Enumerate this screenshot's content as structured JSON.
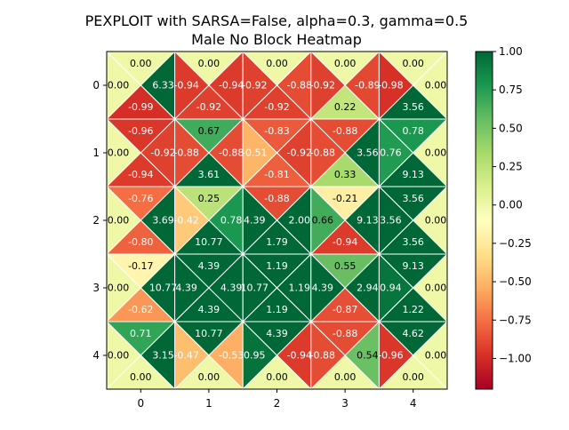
{
  "chart_data": {
    "type": "heatmap",
    "title_lines": [
      "PEXPLOIT with SARSA=False, alpha=0.3, gamma=0.5",
      "Male No Block Heatmap"
    ],
    "xlabel": "",
    "ylabel": "",
    "x_ticks": [
      "0",
      "1",
      "2",
      "3",
      "4"
    ],
    "y_ticks": [
      "0",
      "1",
      "2",
      "3",
      "4"
    ],
    "colorbar": {
      "vmin": -1.2,
      "vmax": 1.0,
      "ticks": [
        "1.00",
        "0.75",
        "0.50",
        "0.25",
        "0.00",
        "−0.25",
        "−0.50",
        "−0.75",
        "−1.00"
      ],
      "tick_values": [
        1.0,
        0.75,
        0.5,
        0.25,
        0.0,
        -0.25,
        -0.5,
        -0.75,
        -1.0
      ],
      "colormap": "RdYlGn"
    },
    "cell_parts": [
      "top",
      "left",
      "right",
      "bottom"
    ],
    "cells": [
      [
        {
          "top": "0.00",
          "left": "0.00",
          "right": "6.33",
          "bottom": "-0.99"
        },
        {
          "top": "0.00",
          "left": "-0.94",
          "right": "-0.94",
          "bottom": "-0.92"
        },
        {
          "top": "0.00",
          "left": "-0.92",
          "right": "-0.88",
          "bottom": "-0.92"
        },
        {
          "top": "0.00",
          "left": "-0.92",
          "right": "-0.89",
          "bottom": "0.22"
        },
        {
          "top": "0.00",
          "left": "-0.98",
          "right": "0.00",
          "bottom": "3.56"
        }
      ],
      [
        {
          "top": "-0.96",
          "left": "0.00",
          "right": "-0.92",
          "bottom": "-0.94"
        },
        {
          "top": "0.67",
          "left": "-0.88",
          "right": "-0.88",
          "bottom": "3.61"
        },
        {
          "top": "-0.83",
          "left": "-0.51",
          "right": "-0.92",
          "bottom": "-0.81"
        },
        {
          "top": "-0.88",
          "left": "-0.88",
          "right": "3.56",
          "bottom": "0.33"
        },
        {
          "top": "0.78",
          "left": "0.76",
          "right": "0.00",
          "bottom": "9.13"
        }
      ],
      [
        {
          "top": "-0.76",
          "left": "0.00",
          "right": "3.69",
          "bottom": "-0.80"
        },
        {
          "top": "0.25",
          "left": "-0.42",
          "right": "0.78",
          "bottom": "10.77"
        },
        {
          "top": "-0.88",
          "left": "4.39",
          "right": "2.00",
          "bottom": "1.79"
        },
        {
          "top": "-0.21",
          "left": "0.66",
          "right": "9.13",
          "bottom": "-0.94"
        },
        {
          "top": "3.56",
          "left": "3.56",
          "right": "0.00",
          "bottom": "3.56"
        }
      ],
      [
        {
          "top": "-0.17",
          "left": "0.00",
          "right": "10.77",
          "bottom": "-0.62"
        },
        {
          "top": "4.39",
          "left": "4.39",
          "right": "4.39",
          "bottom": "4.39"
        },
        {
          "top": "1.19",
          "left": "10.77",
          "right": "1.19",
          "bottom": "1.19"
        },
        {
          "top": "0.55",
          "left": "4.39",
          "right": "2.94",
          "bottom": "-0.87"
        },
        {
          "top": "9.13",
          "left": "0.94",
          "right": "0.00",
          "bottom": "1.22"
        }
      ],
      [
        {
          "top": "0.71",
          "left": "0.00",
          "right": "3.15",
          "bottom": "0.00"
        },
        {
          "top": "10.77",
          "left": "-0.47",
          "right": "-0.53",
          "bottom": "0.00"
        },
        {
          "top": "4.39",
          "left": "0.95",
          "right": "-0.94",
          "bottom": "0.00"
        },
        {
          "top": "-0.88",
          "left": "-0.88",
          "right": "0.54",
          "bottom": "0.00"
        },
        {
          "top": "4.62",
          "left": "-0.96",
          "right": "0.00",
          "bottom": "0.00"
        }
      ]
    ]
  }
}
